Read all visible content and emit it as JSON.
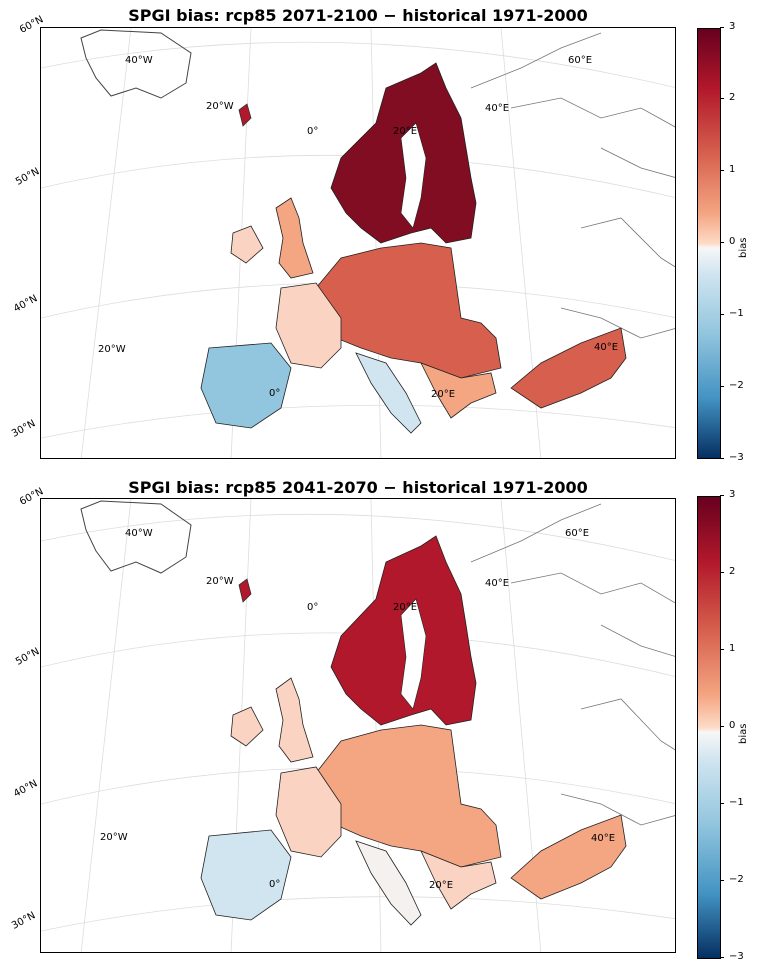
{
  "maps": [
    {
      "title": "SPGI bias: rcp85 2071-2100 − historical 1971-2000",
      "colorbar": {
        "label": "bias",
        "ticks": [
          "3",
          "2",
          "1",
          "0",
          "−1",
          "−2",
          "−3"
        ],
        "min": -3,
        "max": 3,
        "cmap": "RdBu_r"
      },
      "lat_labels": [
        "60°N",
        "50°N",
        "40°N",
        "30°N"
      ],
      "lon_labels": [
        "40°W",
        "20°W",
        "0°",
        "20°E",
        "40°E",
        "60°E",
        "20°W",
        "20°E",
        "0°",
        "40°E"
      ]
    },
    {
      "title": "SPGI bias: rcp85 2041-2070 − historical 1971-2000",
      "colorbar": {
        "label": "bias",
        "ticks": [
          "3",
          "2",
          "1",
          "0",
          "−1",
          "−2",
          "−3"
        ],
        "min": -3,
        "max": 3,
        "cmap": "RdBu_r"
      },
      "lat_labels": [
        "60°N",
        "50°N",
        "40°N",
        "30°N"
      ],
      "lon_labels": [
        "40°W",
        "20°W",
        "0°",
        "20°E",
        "40°E",
        "60°E",
        "20°W",
        "20°E",
        "0°",
        "40°E"
      ]
    }
  ],
  "colors": {
    "very_high": "#800d22",
    "high": "#b2182b",
    "mid_high": "#d6604d",
    "low_pos": "#f4a582",
    "slight_pos": "#fbd3c2",
    "neutral": "#f4f1ef",
    "slight_neg": "#d1e5f0",
    "low_neg": "#92c5de"
  }
}
